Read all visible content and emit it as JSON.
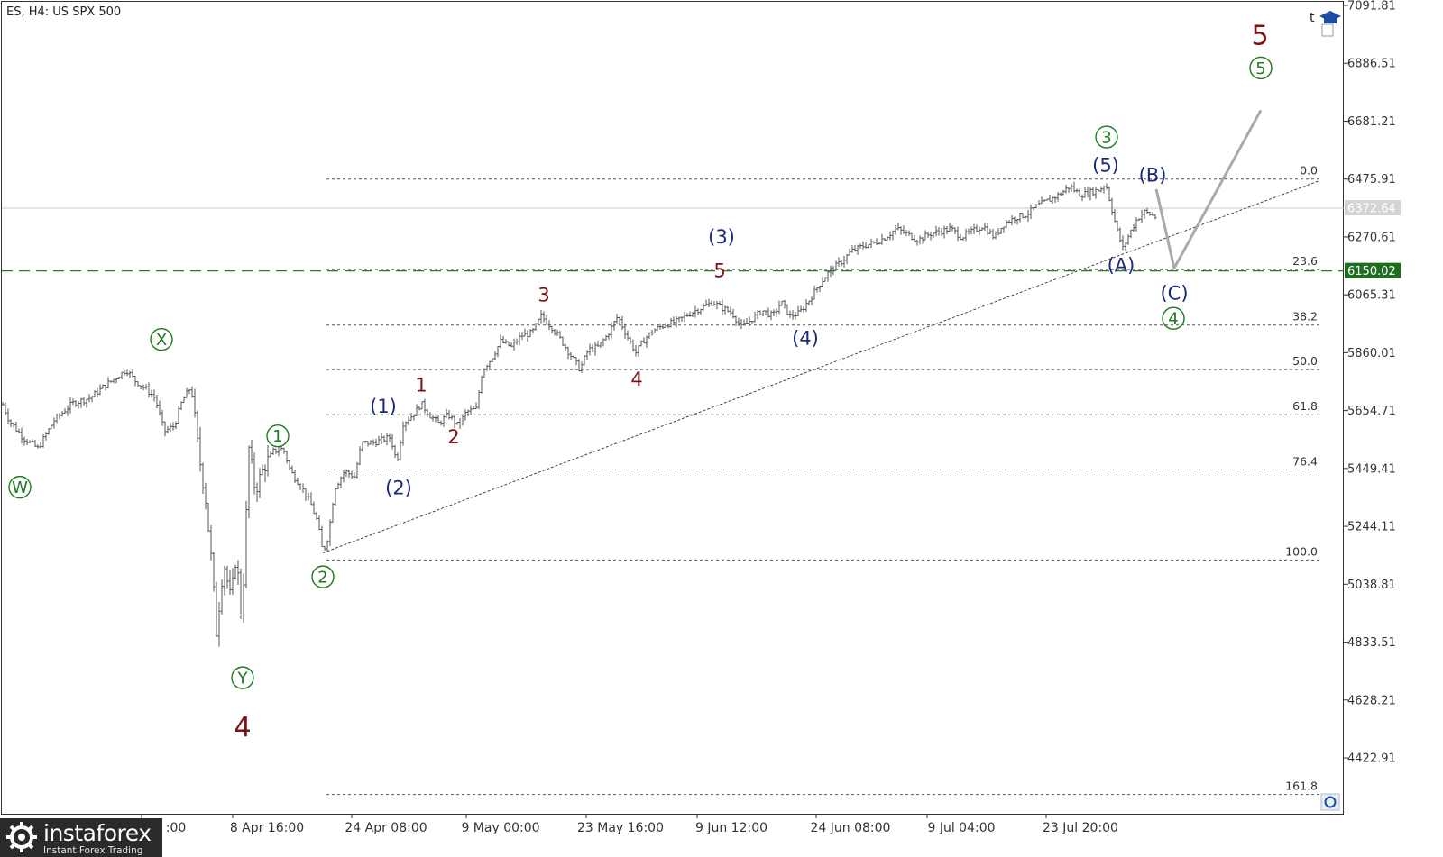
{
  "chart_title": "ES, H4:  US SPX 500",
  "colors": {
    "bars": "#555555",
    "green": "#1d7a1d",
    "navy": "#1c2a7a",
    "maroon": "#7a1212",
    "gray_path": "#aaaaaa",
    "fib": "#555555",
    "price_line": "#c8c8c8",
    "level_line": "#2a7a2a"
  },
  "toolbar_icons": [
    "graduation-cap-icon",
    "t-letter-icon"
  ],
  "chart_data": {
    "type": "candlestick",
    "symbol": "ES",
    "timeframe": "H4",
    "instrument": "US SPX 500",
    "ylim": [
      4200,
      7091.81
    ],
    "y_ticks": [
      7091.81,
      6886.51,
      6681.21,
      6475.91,
      6270.61,
      6065.31,
      5860.01,
      5654.71,
      5449.41,
      5244.11,
      5038.81,
      4833.51,
      4628.21,
      4422.91
    ],
    "x_tick_labels": [
      ":00",
      "8 Apr 16:00",
      "24 Apr 08:00",
      "9 May 00:00",
      "23 May 16:00",
      "9 Jun 12:00",
      "24 Jun 08:00",
      "9 Jul 04:00",
      "23 Jul 20:00"
    ],
    "current_price": "6372.64",
    "level_price": "6150.02",
    "price_path": [
      [
        0,
        5700
      ],
      [
        10,
        5620
      ],
      [
        25,
        5560
      ],
      [
        42,
        5520
      ],
      [
        60,
        5620
      ],
      [
        80,
        5680
      ],
      [
        100,
        5700
      ],
      [
        115,
        5740
      ],
      [
        128,
        5770
      ],
      [
        140,
        5800
      ],
      [
        150,
        5760
      ],
      [
        162,
        5730
      ],
      [
        172,
        5700
      ],
      [
        182,
        5580
      ],
      [
        193,
        5600
      ],
      [
        202,
        5690
      ],
      [
        212,
        5740
      ],
      [
        220,
        5510
      ],
      [
        228,
        5340
      ],
      [
        235,
        5100
      ],
      [
        240,
        4870
      ],
      [
        248,
        5120
      ],
      [
        256,
        4980
      ],
      [
        262,
        5150
      ],
      [
        268,
        4900
      ],
      [
        276,
        5520
      ],
      [
        283,
        5370
      ],
      [
        292,
        5450
      ],
      [
        303,
        5510
      ],
      [
        314,
        5520
      ],
      [
        322,
        5440
      ],
      [
        335,
        5380
      ],
      [
        345,
        5320
      ],
      [
        352,
        5260
      ],
      [
        358,
        5150
      ],
      [
        364,
        5210
      ],
      [
        371,
        5380
      ],
      [
        382,
        5440
      ],
      [
        393,
        5420
      ],
      [
        401,
        5540
      ],
      [
        413,
        5540
      ],
      [
        423,
        5550
      ],
      [
        433,
        5560
      ],
      [
        440,
        5470
      ],
      [
        447,
        5610
      ],
      [
        458,
        5640
      ],
      [
        467,
        5680
      ],
      [
        476,
        5640
      ],
      [
        486,
        5610
      ],
      [
        497,
        5640
      ],
      [
        508,
        5600
      ],
      [
        517,
        5650
      ],
      [
        528,
        5660
      ],
      [
        535,
        5800
      ],
      [
        545,
        5840
      ],
      [
        555,
        5900
      ],
      [
        567,
        5880
      ],
      [
        578,
        5920
      ],
      [
        590,
        5930
      ],
      [
        600,
        5990
      ],
      [
        612,
        5950
      ],
      [
        623,
        5900
      ],
      [
        633,
        5850
      ],
      [
        643,
        5800
      ],
      [
        652,
        5870
      ],
      [
        663,
        5880
      ],
      [
        673,
        5920
      ],
      [
        685,
        5990
      ],
      [
        695,
        5920
      ],
      [
        705,
        5860
      ],
      [
        715,
        5910
      ],
      [
        725,
        5940
      ],
      [
        738,
        5960
      ],
      [
        750,
        5970
      ],
      [
        765,
        6000
      ],
      [
        778,
        6020
      ],
      [
        790,
        6040
      ],
      [
        800,
        6020
      ],
      [
        812,
        6000
      ],
      [
        822,
        5950
      ],
      [
        834,
        5980
      ],
      [
        845,
        6010
      ],
      [
        857,
        5990
      ],
      [
        866,
        6040
      ],
      [
        876,
        5990
      ],
      [
        886,
        6000
      ],
      [
        898,
        6050
      ],
      [
        910,
        6110
      ],
      [
        920,
        6150
      ],
      [
        932,
        6180
      ],
      [
        944,
        6220
      ],
      [
        958,
        6240
      ],
      [
        970,
        6250
      ],
      [
        982,
        6270
      ],
      [
        994,
        6300
      ],
      [
        1006,
        6280
      ],
      [
        1018,
        6260
      ],
      [
        1030,
        6280
      ],
      [
        1042,
        6290
      ],
      [
        1054,
        6300
      ],
      [
        1066,
        6270
      ],
      [
        1078,
        6290
      ],
      [
        1090,
        6310
      ],
      [
        1102,
        6270
      ],
      [
        1114,
        6320
      ],
      [
        1126,
        6340
      ],
      [
        1138,
        6350
      ],
      [
        1150,
        6380
      ],
      [
        1162,
        6400
      ],
      [
        1174,
        6420
      ],
      [
        1186,
        6450
      ],
      [
        1198,
        6420
      ],
      [
        1210,
        6430
      ],
      [
        1220,
        6440
      ],
      [
        1226,
        6460
      ],
      [
        1232,
        6380
      ],
      [
        1238,
        6300
      ],
      [
        1245,
        6230
      ],
      [
        1252,
        6280
      ],
      [
        1260,
        6330
      ],
      [
        1268,
        6360
      ],
      [
        1276,
        6350
      ],
      [
        1282,
        6340
      ]
    ],
    "projection_path": [
      [
        1282,
        6440
      ],
      [
        1302,
        6160
      ],
      [
        1398,
        6720
      ]
    ],
    "trendline": [
      [
        358,
        5150
      ],
      [
        1463,
        6470
      ]
    ],
    "fib_levels": [
      {
        "label": "0.0",
        "price": 6475.91
      },
      {
        "label": "23.6",
        "price": 6155
      },
      {
        "label": "38.2",
        "price": 5958
      },
      {
        "label": "50.0",
        "price": 5800
      },
      {
        "label": "61.8",
        "price": 5640
      },
      {
        "label": "76.4",
        "price": 5444
      },
      {
        "label": "100.0",
        "price": 5125
      },
      {
        "label": "161.8",
        "price": 4293
      }
    ],
    "fib_x_range": [
      362,
      1463
    ],
    "wave_labels": [
      {
        "text": "W",
        "x": 22,
        "price": 5383,
        "style": "circle",
        "color": "green"
      },
      {
        "text": "X",
        "x": 179,
        "price": 5907,
        "style": "circle",
        "color": "green"
      },
      {
        "text": "Y",
        "x": 269,
        "price": 4707,
        "style": "circle",
        "color": "green"
      },
      {
        "text": "4",
        "x": 269,
        "price": 4530,
        "style": "big",
        "color": "maroon"
      },
      {
        "text": "1",
        "x": 308,
        "price": 5565,
        "style": "circle",
        "color": "green"
      },
      {
        "text": "2",
        "x": 358,
        "price": 5065,
        "style": "circle",
        "color": "green"
      },
      {
        "text": "(1)",
        "x": 425,
        "price": 5670,
        "style": "paren",
        "color": "navy"
      },
      {
        "text": "(2)",
        "x": 442,
        "price": 5380,
        "style": "paren",
        "color": "navy"
      },
      {
        "text": "1",
        "x": 467,
        "price": 5745,
        "style": "small",
        "color": "maroon"
      },
      {
        "text": "2",
        "x": 503,
        "price": 5560,
        "style": "small",
        "color": "maroon"
      },
      {
        "text": "3",
        "x": 603,
        "price": 6065,
        "style": "small",
        "color": "maroon"
      },
      {
        "text": "4",
        "x": 706,
        "price": 5765,
        "style": "small",
        "color": "maroon"
      },
      {
        "text": "(3)",
        "x": 800,
        "price": 6270,
        "style": "paren",
        "color": "navy"
      },
      {
        "text": "5",
        "x": 798,
        "price": 6150,
        "style": "small",
        "color": "maroon"
      },
      {
        "text": "(4)",
        "x": 893,
        "price": 5910,
        "style": "paren",
        "color": "navy"
      },
      {
        "text": "3",
        "x": 1227,
        "price": 6625,
        "style": "circle",
        "color": "green"
      },
      {
        "text": "(5)",
        "x": 1226,
        "price": 6525,
        "style": "paren",
        "color": "navy"
      },
      {
        "text": "(B)",
        "x": 1278,
        "price": 6490,
        "style": "paren",
        "color": "navy"
      },
      {
        "text": "(A)",
        "x": 1243,
        "price": 6170,
        "style": "paren",
        "color": "navy"
      },
      {
        "text": "(C)",
        "x": 1302,
        "price": 6070,
        "style": "paren",
        "color": "navy"
      },
      {
        "text": "4",
        "x": 1301,
        "price": 5982,
        "style": "circle",
        "color": "green"
      },
      {
        "text": "5",
        "x": 1398,
        "price": 6870,
        "style": "circle",
        "color": "green"
      },
      {
        "text": "5",
        "x": 1397,
        "price": 6983,
        "style": "big",
        "color": "maroon"
      }
    ]
  },
  "logo": {
    "brand": "instaforex",
    "tagline": "Instant Forex Trading"
  }
}
